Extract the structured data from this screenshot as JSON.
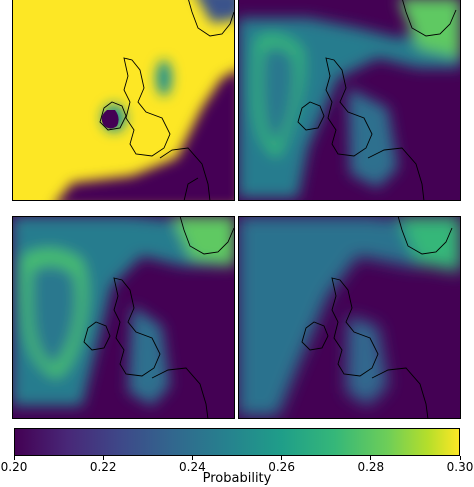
{
  "chart_data": {
    "type": "heatmap",
    "panels": [
      {
        "id": "top-left",
        "description_values": {
          "background": 0.3,
          "low_region": 0.2,
          "ireland_spot": 0.25,
          "scotland_spot": 0.25
        }
      },
      {
        "id": "top-right",
        "description_values": {
          "background": 0.2,
          "ocean_blob": 0.25,
          "blob_ring": 0.27,
          "norway_patch": 0.28,
          "britain_patch": 0.24
        }
      },
      {
        "id": "bottom-left",
        "description_values": {
          "background": 0.2,
          "ocean_blob": 0.25,
          "blob_ring": 0.28,
          "norway_patch": 0.28,
          "britain_patch": 0.24
        }
      },
      {
        "id": "bottom-right",
        "description_values": {
          "background": 0.2,
          "ocean_blob": 0.245,
          "norway_patch": 0.27,
          "britain_patch": 0.235
        }
      }
    ],
    "colorbar": {
      "label": "Probability",
      "min": 0.2,
      "max": 0.3,
      "ticks": [
        "0.20",
        "0.22",
        "0.24",
        "0.26",
        "0.28",
        "0.30"
      ],
      "colormap": "viridis"
    }
  },
  "colors": {
    "viridis_low": "#440154",
    "viridis_mid": "#21918c",
    "viridis_high": "#fde725"
  }
}
